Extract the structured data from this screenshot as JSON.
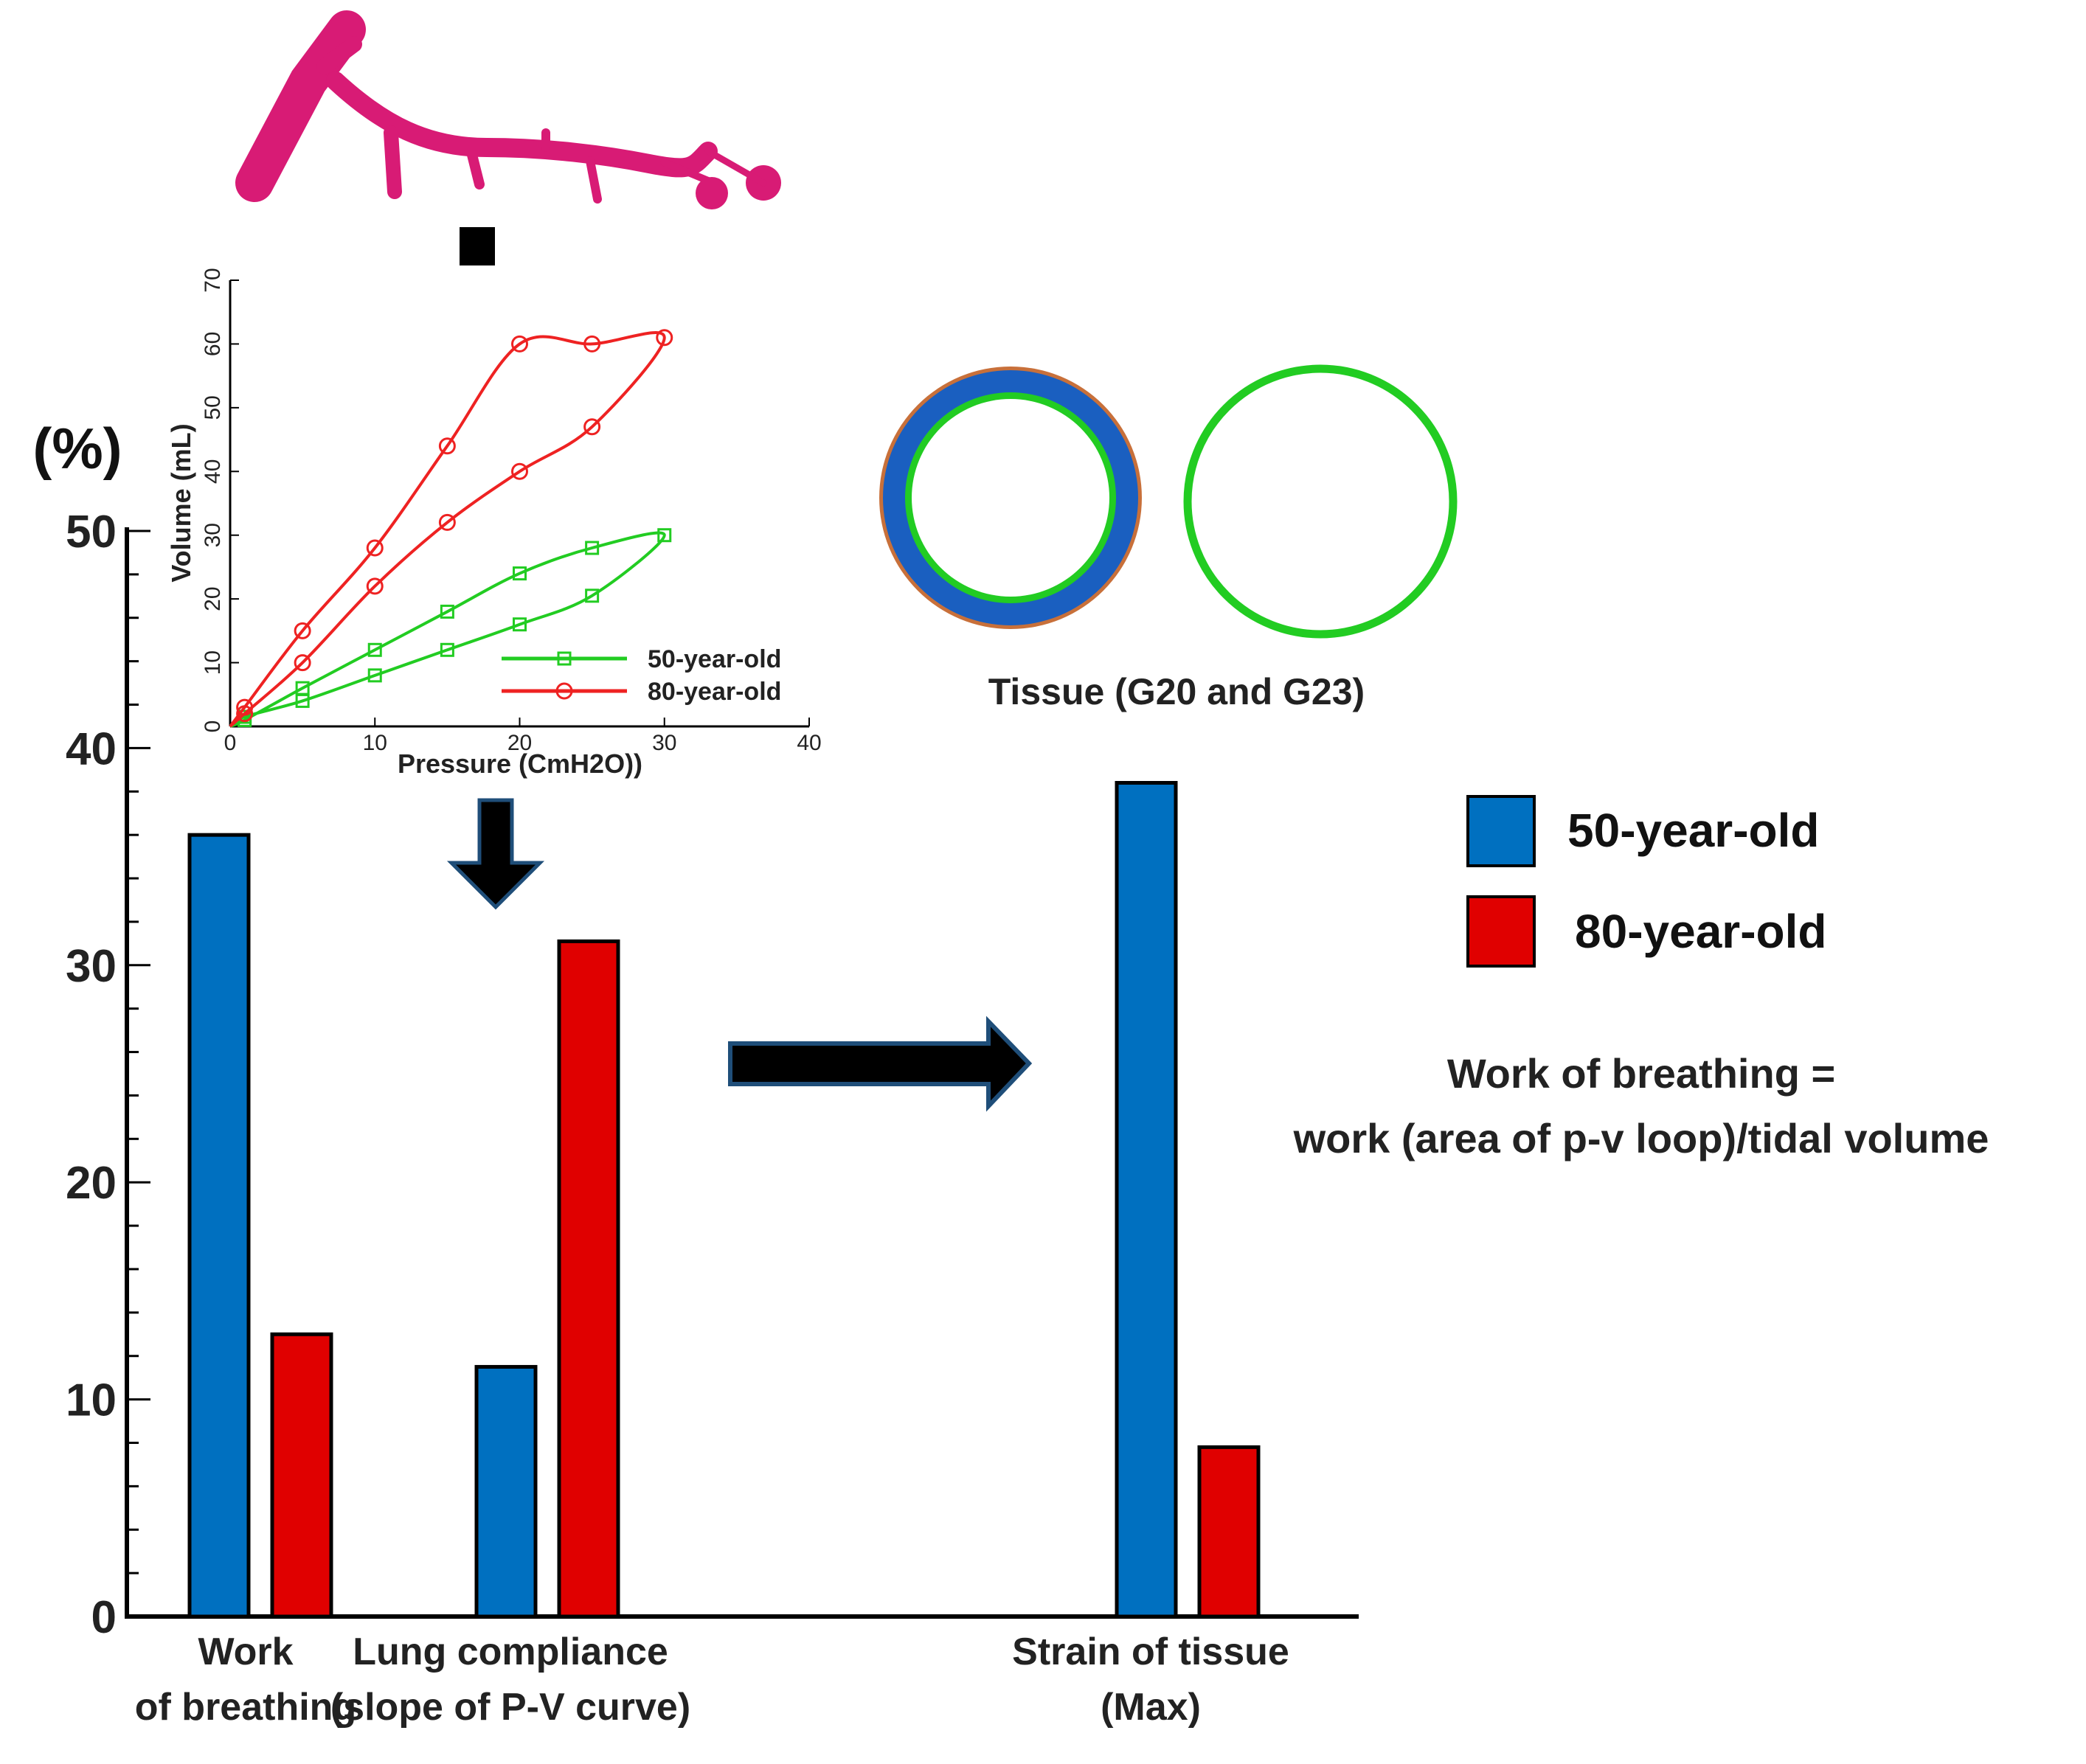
{
  "chart_data": [
    {
      "type": "bar",
      "categories": [
        {
          "line1": "Work",
          "line2": "of breathing"
        },
        {
          "line1": "Lung compliance",
          "line2": "(slope of P-V curve)"
        },
        {
          "line1": "Strain of tissue",
          "line2": "(Max)"
        }
      ],
      "series": [
        {
          "name": "50-year-old",
          "color": "#0070c0",
          "values": [
            36,
            11.5,
            38.4
          ]
        },
        {
          "name": "80-year-old",
          "color": "#e00000",
          "values": [
            13,
            31.1,
            7.8
          ]
        }
      ],
      "ylabel": "(%)",
      "ylim": [
        0,
        50
      ],
      "yticks": [
        "0",
        "10",
        "20",
        "30",
        "40",
        "50"
      ],
      "legend": "right"
    },
    {
      "type": "line",
      "xlabel": "Pressure (CmH2O))",
      "ylabel": "Volume (mL)",
      "xlim": [
        0,
        40
      ],
      "ylim": [
        0,
        70
      ],
      "xticks": [
        "0",
        "10",
        "20",
        "30",
        "40"
      ],
      "yticks": [
        "0",
        "10",
        "20",
        "30",
        "40",
        "50",
        "60",
        "70"
      ],
      "series": [
        {
          "name": "50-year-old",
          "color": "#22cc22",
          "marker": "square",
          "x": [
            0,
            1,
            5,
            10,
            15,
            20,
            25,
            30,
            25,
            20,
            15,
            10,
            5,
            1,
            0
          ],
          "y": [
            0,
            1,
            6,
            12,
            18,
            24,
            28,
            30,
            20.5,
            16,
            12,
            8,
            4,
            1.5,
            0
          ]
        },
        {
          "name": "80-year-old",
          "color": "#ee2222",
          "marker": "circle",
          "x": [
            0,
            1,
            5,
            10,
            15,
            20,
            25,
            30,
            25,
            20,
            15,
            10,
            5,
            1,
            0
          ],
          "y": [
            0,
            3,
            15,
            28,
            44,
            60,
            60,
            61,
            47,
            40,
            32,
            22,
            10,
            2,
            0
          ]
        }
      ]
    }
  ],
  "tissue_label": "Tissue (G20 and G23)",
  "legend_items": [
    "50-year-old",
    "80-year-old"
  ],
  "formula": {
    "line1": "Work of breathing =",
    "line2": "work (area of p-v loop)/tidal volume"
  },
  "colors": {
    "blue": "#0070c0",
    "red": "#e00000",
    "green": "#22cc22",
    "airway": "#d81b75",
    "orange": "#c8703a",
    "ring_blue": "#1a5fc0"
  }
}
